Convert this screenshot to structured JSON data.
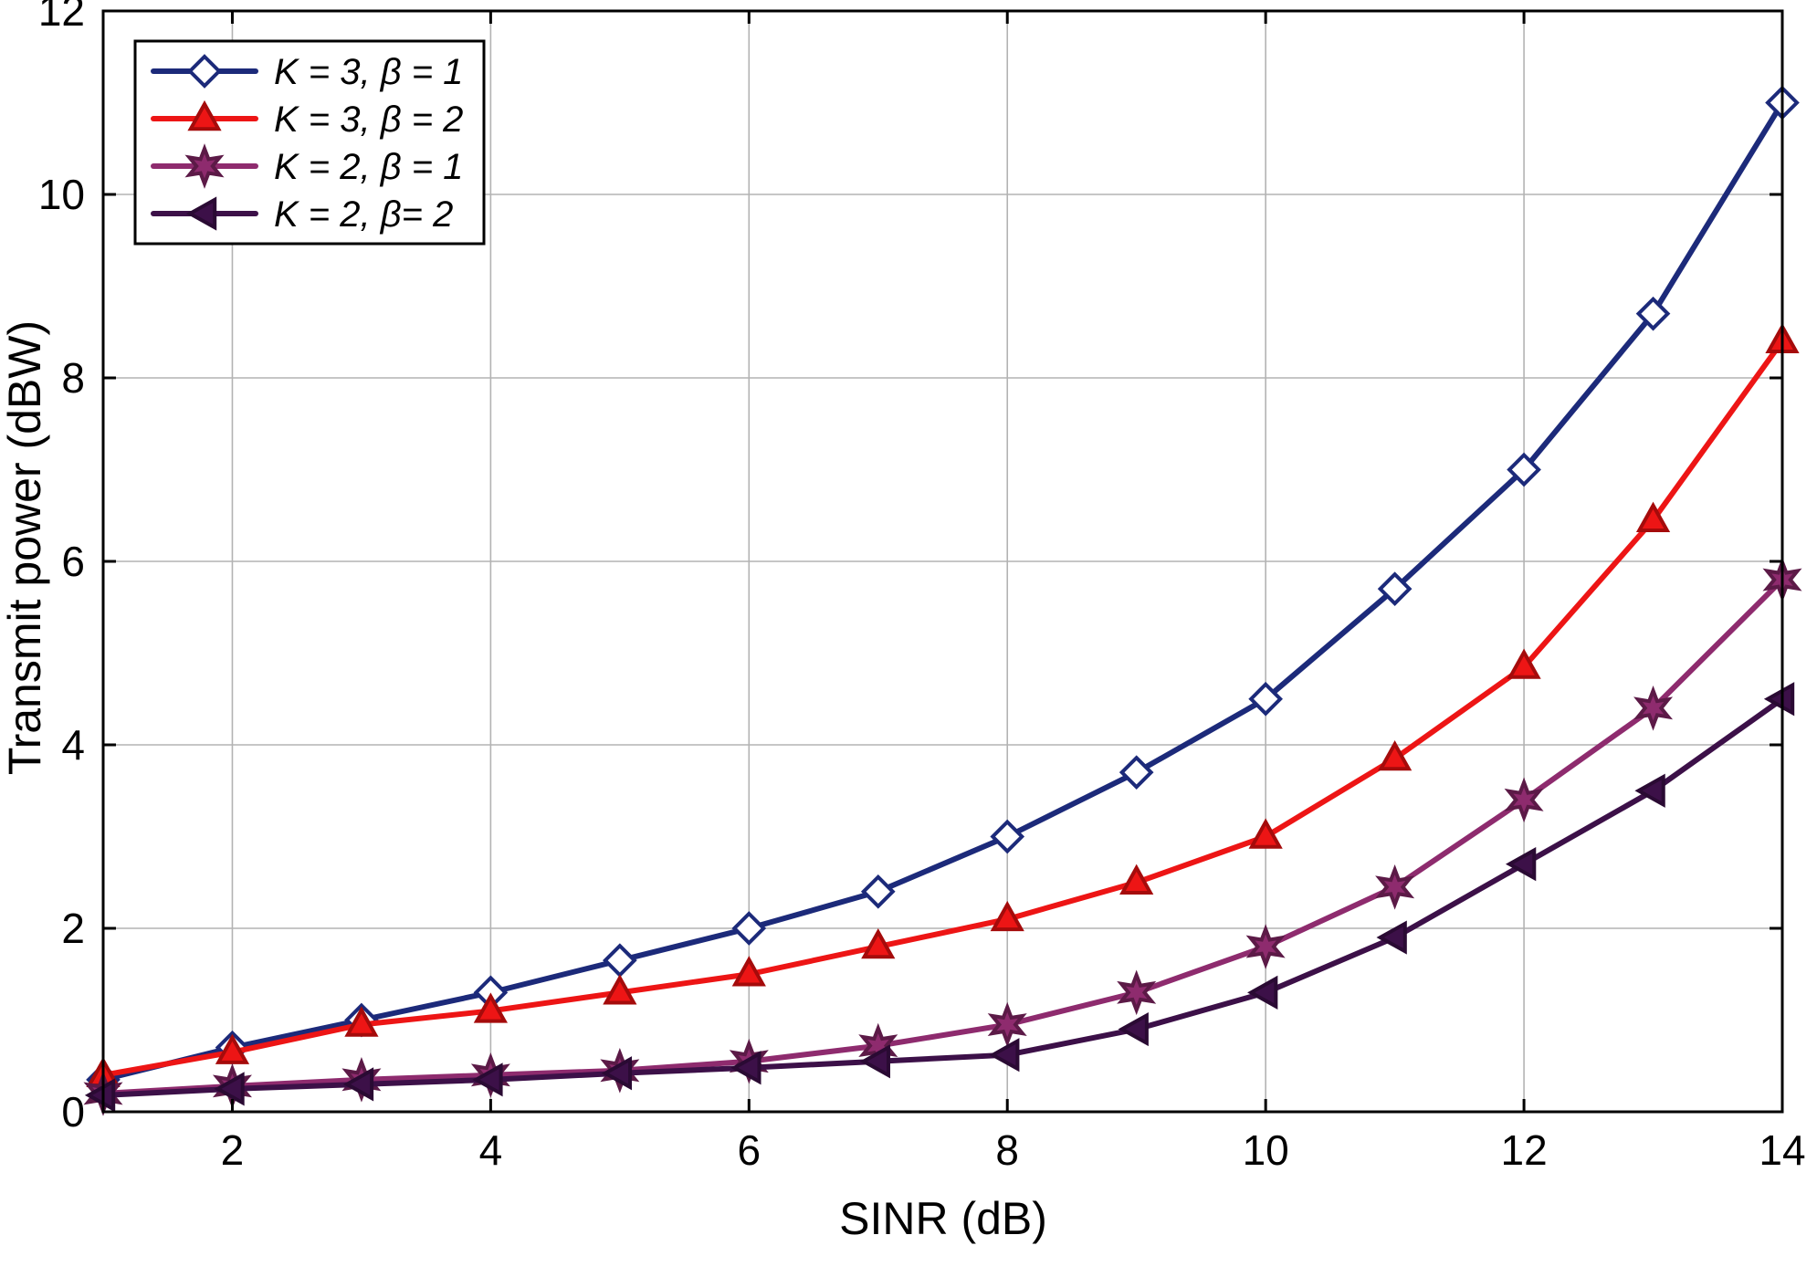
{
  "chart_data": {
    "type": "line",
    "title": "",
    "xlabel": "SINR (dB)",
    "ylabel": "Transmit power (dBW)",
    "xlim": [
      1,
      14
    ],
    "ylim": [
      0,
      12
    ],
    "xticks": [
      2,
      4,
      6,
      8,
      10,
      12,
      14
    ],
    "yticks": [
      0,
      2,
      4,
      6,
      8,
      10,
      12
    ],
    "grid": true,
    "grid_color": "#b3b3b3",
    "axis_color": "#000000",
    "legend_position": "top-left",
    "x": [
      1,
      2,
      3,
      4,
      5,
      6,
      7,
      8,
      9,
      10,
      11,
      12,
      13,
      14
    ],
    "series": [
      {
        "name": "K = 3, β = 1",
        "color": "#1c2a7a",
        "marker": "diamond",
        "marker_fill": "#ffffff",
        "marker_edge": "#1c2a7a",
        "values": [
          0.35,
          0.7,
          1.0,
          1.3,
          1.65,
          2.0,
          2.4,
          3.0,
          3.7,
          4.5,
          5.7,
          7.0,
          8.7,
          11.0
        ]
      },
      {
        "name": "K = 3, β = 2",
        "color": "#ed1515",
        "marker": "triangle-up",
        "marker_fill": "#ed1515",
        "marker_edge": "#a50b0b",
        "values": [
          0.4,
          0.65,
          0.95,
          1.1,
          1.3,
          1.5,
          1.8,
          2.1,
          2.5,
          3.0,
          3.85,
          4.85,
          6.45,
          8.4
        ]
      },
      {
        "name": "K =  2, β = 1",
        "color": "#8e2b6e",
        "marker": "hexagram",
        "marker_fill": "#8e2b6e",
        "marker_edge": "#5c1a47",
        "values": [
          0.2,
          0.28,
          0.35,
          0.4,
          0.45,
          0.55,
          0.72,
          0.95,
          1.3,
          1.8,
          2.45,
          3.4,
          4.4,
          5.8
        ]
      },
      {
        "name": "K = 2, β= 2",
        "color": "#3c1048",
        "marker": "triangle-left",
        "marker_fill": "#3c1048",
        "marker_edge": "#2a0a33",
        "values": [
          0.18,
          0.25,
          0.3,
          0.35,
          0.42,
          0.48,
          0.55,
          0.62,
          0.9,
          1.3,
          1.9,
          2.7,
          3.5,
          4.5
        ]
      }
    ]
  }
}
